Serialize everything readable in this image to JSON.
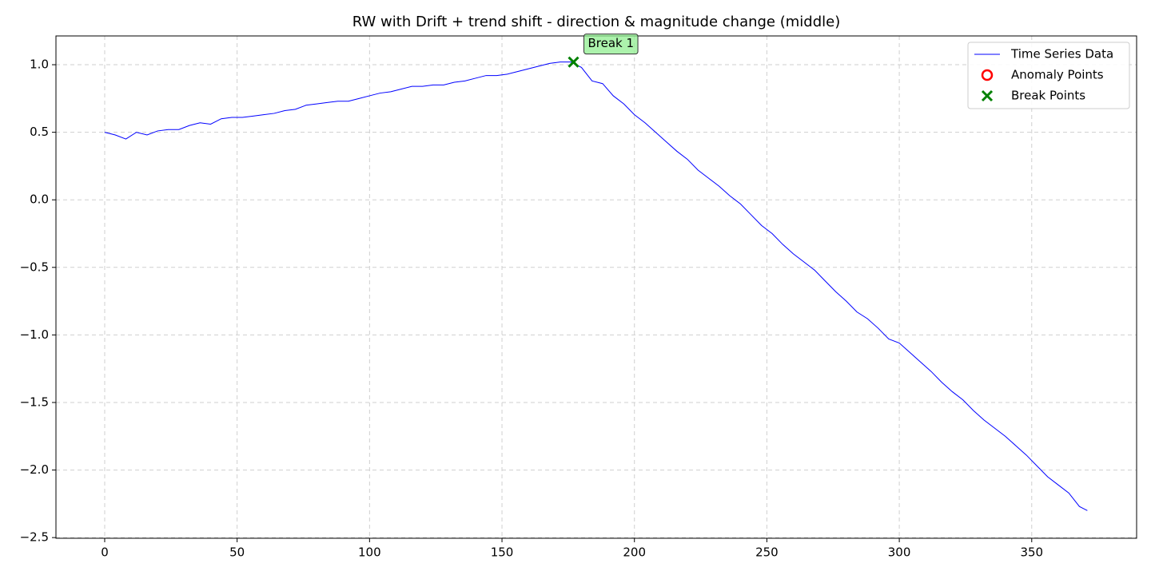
{
  "chart_data": {
    "type": "line",
    "title": "RW with Drift + trend shift - direction & magnitude change (middle)",
    "xlim": [
      -18.4,
      389.6
    ],
    "ylim": [
      -2.505,
      1.213
    ],
    "xticks": [
      0,
      50,
      100,
      150,
      200,
      250,
      300,
      350
    ],
    "yticks": [
      {
        "value": -2.5,
        "label": "−2.5"
      },
      {
        "value": -2.0,
        "label": "−2.0"
      },
      {
        "value": -1.5,
        "label": "−1.5"
      },
      {
        "value": -1.0,
        "label": "−1.0"
      },
      {
        "value": -0.5,
        "label": "−0.5"
      },
      {
        "value": 0.0,
        "label": "0.0"
      },
      0.5,
      {
        "value": 1.0,
        "label": "1.0"
      }
    ],
    "grid": true,
    "legend": "upper right",
    "series": [
      {
        "name": "Time Series Data",
        "kind": "line",
        "color": "#0000ff",
        "x": [
          0,
          4,
          8,
          12,
          16,
          20,
          24,
          28,
          32,
          36,
          40,
          44,
          48,
          52,
          56,
          60,
          64,
          68,
          72,
          76,
          80,
          84,
          88,
          92,
          96,
          100,
          104,
          108,
          112,
          116,
          120,
          124,
          128,
          132,
          136,
          140,
          144,
          148,
          152,
          156,
          160,
          164,
          168,
          172,
          176,
          180,
          184,
          188,
          192,
          196,
          200,
          204,
          208,
          212,
          216,
          220,
          224,
          228,
          232,
          236,
          240,
          244,
          248,
          252,
          256,
          260,
          264,
          268,
          272,
          276,
          280,
          284,
          288,
          292,
          296,
          300,
          304,
          308,
          312,
          316,
          320,
          324,
          328,
          332,
          336,
          340,
          344,
          348,
          352,
          356,
          360,
          364,
          368,
          371
        ],
        "values": [
          0.5,
          0.48,
          0.45,
          0.5,
          0.48,
          0.51,
          0.52,
          0.52,
          0.55,
          0.57,
          0.56,
          0.6,
          0.61,
          0.61,
          0.62,
          0.63,
          0.64,
          0.66,
          0.67,
          0.7,
          0.71,
          0.72,
          0.73,
          0.73,
          0.75,
          0.77,
          0.79,
          0.8,
          0.82,
          0.84,
          0.84,
          0.85,
          0.85,
          0.87,
          0.88,
          0.9,
          0.92,
          0.92,
          0.93,
          0.95,
          0.97,
          0.99,
          1.01,
          1.02,
          1.02,
          0.98,
          0.88,
          0.86,
          0.77,
          0.71,
          0.63,
          0.57,
          0.5,
          0.43,
          0.36,
          0.3,
          0.22,
          0.16,
          0.1,
          0.03,
          -0.03,
          -0.11,
          -0.19,
          -0.25,
          -0.33,
          -0.4,
          -0.46,
          -0.52,
          -0.6,
          -0.68,
          -0.75,
          -0.83,
          -0.88,
          -0.95,
          -1.03,
          -1.06,
          -1.13,
          -1.2,
          -1.27,
          -1.35,
          -1.42,
          -1.48,
          -1.56,
          -1.63,
          -1.69,
          -1.75,
          -1.82,
          -1.89,
          -1.97,
          -2.05,
          -2.11,
          -2.17,
          -2.27,
          -2.3
        ]
      },
      {
        "name": "Anomaly Points",
        "kind": "circle",
        "color": "#ff0000",
        "x": [],
        "values": []
      },
      {
        "name": "Break Points",
        "kind": "cross",
        "color": "#008000",
        "x": [
          177
        ],
        "values": [
          1.02
        ]
      }
    ],
    "annotations": [
      {
        "text": "Break 1",
        "series": 2,
        "index": 0
      }
    ]
  }
}
